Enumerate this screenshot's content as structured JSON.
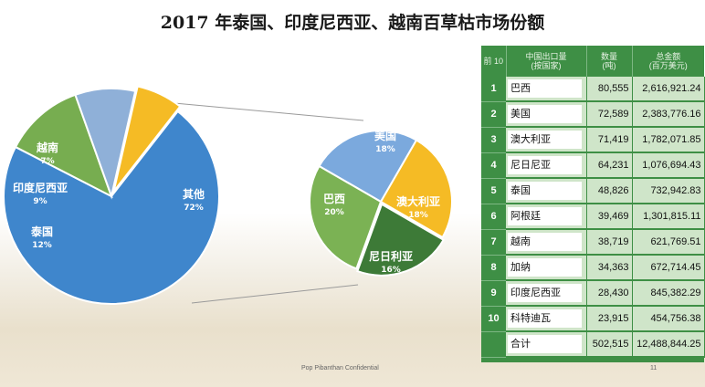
{
  "title": "2017 年泰国、印度尼西亚、越南百草枯市场份额",
  "footer": "Pop Pibanthan Confidential",
  "page_number": "11",
  "chart_data": [
    {
      "type": "pie",
      "slices": [
        {
          "label": "其他",
          "value": 72,
          "pct": "72%",
          "color": "#3f86cc"
        },
        {
          "label": "泰国",
          "value": 12,
          "pct": "12%",
          "color": "#77ad50"
        },
        {
          "label": "印度尼西亚",
          "value": 9,
          "pct": "9%",
          "color": "#8fb0d8"
        },
        {
          "label": "越南",
          "value": 7,
          "pct": "7%",
          "color": "#f5bb25"
        }
      ]
    },
    {
      "type": "pie",
      "slices": [
        {
          "label": "美国",
          "value": 18,
          "pct": "18%",
          "color": "#7ba9dd"
        },
        {
          "label": "澳大利亚",
          "value": 18,
          "pct": "18%",
          "color": "#f5bb25"
        },
        {
          "label": "尼日利亚",
          "value": 16,
          "pct": "16%",
          "color": "#3d7a37"
        },
        {
          "label": "巴西",
          "value": 20,
          "pct": "20%",
          "color": "#7bb254"
        }
      ]
    },
    {
      "type": "table",
      "headers": [
        "前 10",
        "中国出口量\n(按国家)",
        "数量\n(吨)",
        "总金额\n(百万美元)"
      ],
      "rows": [
        {
          "rank": "1",
          "country": "巴西",
          "qty": "80,555",
          "amount": "2,616,921.24"
        },
        {
          "rank": "2",
          "country": "美国",
          "qty": "72,589",
          "amount": "2,383,776.16"
        },
        {
          "rank": "3",
          "country": "澳大利亚",
          "qty": "71,419",
          "amount": "1,782,071.85"
        },
        {
          "rank": "4",
          "country": "尼日尼亚",
          "qty": "64,231",
          "amount": "1,076,694.43"
        },
        {
          "rank": "5",
          "country": "泰国",
          "qty": "48,826",
          "amount": "732,942.83"
        },
        {
          "rank": "6",
          "country": "阿根廷",
          "qty": "39,469",
          "amount": "1,301,815.11"
        },
        {
          "rank": "7",
          "country": "越南",
          "qty": "38,719",
          "amount": "621,769.51"
        },
        {
          "rank": "8",
          "country": "加纳",
          "qty": "34,363",
          "amount": "672,714.45"
        },
        {
          "rank": "9",
          "country": "印度尼西亚",
          "qty": "28,430",
          "amount": "845,382.29"
        },
        {
          "rank": "10",
          "country": "科特迪瓦",
          "qty": "23,915",
          "amount": "454,756.38"
        }
      ],
      "total": {
        "rank": "",
        "country": "合计",
        "qty": "502,515",
        "amount": "12,488,844.25"
      }
    }
  ]
}
